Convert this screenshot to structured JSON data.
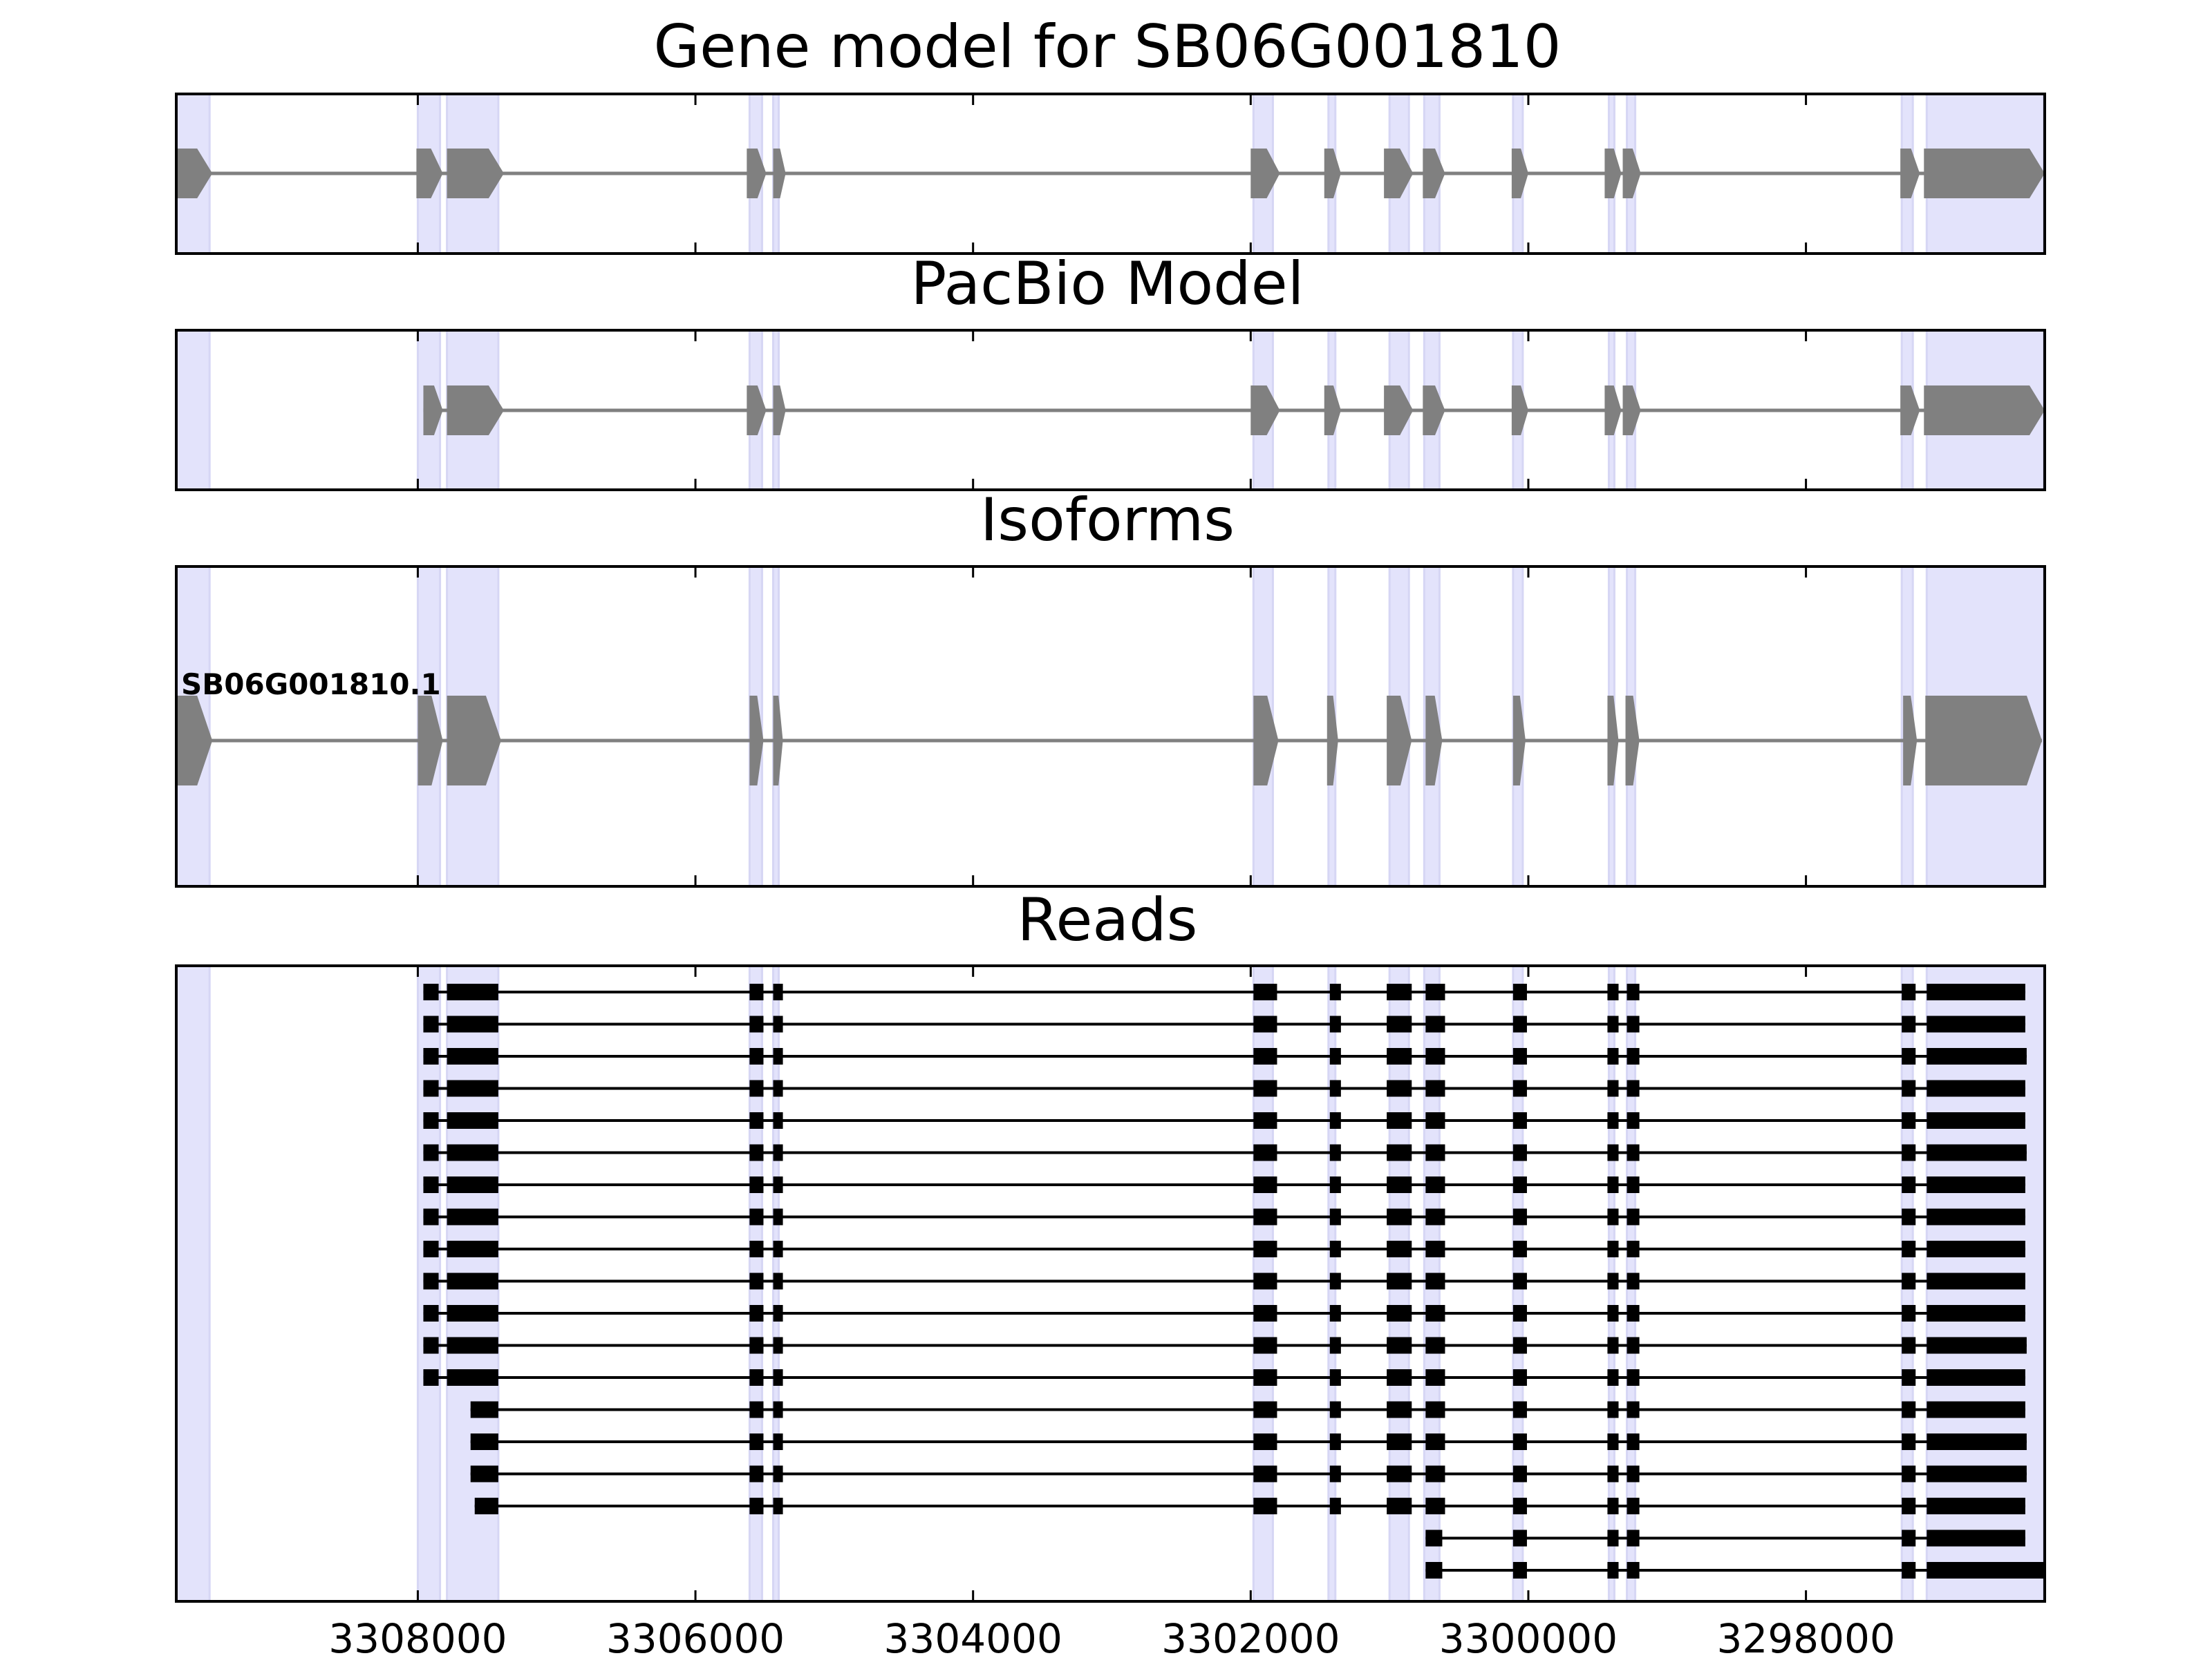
{
  "chart_data": {
    "type": "gene_model",
    "x_axis": {
      "direction": "reversed",
      "xlim": [
        3309740,
        3296280
      ],
      "ticks": [
        3308000,
        3306000,
        3304000,
        3302000,
        3300000,
        3298000
      ],
      "tick_labels": [
        "3308000",
        "3306000",
        "3304000",
        "3302000",
        "3300000",
        "3298000"
      ]
    },
    "highlight_color": "#e3e3fb",
    "gene_color": "#808080",
    "read_color": "#000000",
    "highlight_regions": [
      [
        3309740,
        3309500
      ],
      [
        3308000,
        3307840
      ],
      [
        3307790,
        3307420
      ],
      [
        3305610,
        3305520
      ],
      [
        3305440,
        3305400
      ],
      [
        3301980,
        3301840
      ],
      [
        3301440,
        3301390
      ],
      [
        3301000,
        3300860
      ],
      [
        3300750,
        3300640
      ],
      [
        3300110,
        3300040
      ],
      [
        3299420,
        3299380
      ],
      [
        3299290,
        3299230
      ],
      [
        3297310,
        3297230
      ],
      [
        3297130,
        3296290
      ]
    ],
    "panels": [
      {
        "title": "Gene model for SB06G001810",
        "exons": [
          [
            3309740,
            3309480
          ],
          [
            3308010,
            3307820
          ],
          [
            3307790,
            3307380
          ],
          [
            3305630,
            3305490
          ],
          [
            3305440,
            3305350
          ],
          [
            3302000,
            3301790
          ],
          [
            3301470,
            3301350
          ],
          [
            3301040,
            3300830
          ],
          [
            3300760,
            3300600
          ],
          [
            3300120,
            3300000
          ],
          [
            3299450,
            3299330
          ],
          [
            3299320,
            3299190
          ],
          [
            3297320,
            3297180
          ],
          [
            3297150,
            3296280
          ]
        ]
      },
      {
        "title": "PacBio Model",
        "exons": [
          [
            3307960,
            3307820
          ],
          [
            3307790,
            3307380
          ],
          [
            3305630,
            3305490
          ],
          [
            3305440,
            3305350
          ],
          [
            3302000,
            3301790
          ],
          [
            3301470,
            3301350
          ],
          [
            3301040,
            3300830
          ],
          [
            3300760,
            3300600
          ],
          [
            3300120,
            3300000
          ],
          [
            3299450,
            3299330
          ],
          [
            3299320,
            3299190
          ],
          [
            3297320,
            3297180
          ],
          [
            3297150,
            3296280
          ]
        ]
      },
      {
        "title": "Isoforms",
        "isoform_label": "SB06G001810.1",
        "exons": [
          [
            3309740,
            3309480
          ],
          [
            3308000,
            3307820
          ],
          [
            3307790,
            3307400
          ],
          [
            3305610,
            3305510
          ],
          [
            3305440,
            3305370
          ],
          [
            3301980,
            3301800
          ],
          [
            3301450,
            3301370
          ],
          [
            3301020,
            3300840
          ],
          [
            3300740,
            3300620
          ],
          [
            3300110,
            3300020
          ],
          [
            3299430,
            3299350
          ],
          [
            3299300,
            3299200
          ],
          [
            3297300,
            3297200
          ],
          [
            3297140,
            3296300
          ]
        ]
      }
    ],
    "reads_panel": {
      "title": "Reads",
      "reads": [
        [
          [
            3307960,
            3307850
          ],
          [
            3307790,
            3307420
          ],
          [
            3305610,
            3305510
          ],
          [
            3305440,
            3305370
          ],
          [
            3301980,
            3301810
          ],
          [
            3301430,
            3301350
          ],
          [
            3301020,
            3300840
          ],
          [
            3300740,
            3300600
          ],
          [
            3300110,
            3300010
          ],
          [
            3299430,
            3299350
          ],
          [
            3299290,
            3299200
          ],
          [
            3297310,
            3297210
          ],
          [
            3297130,
            3296420
          ]
        ],
        [
          [
            3307960,
            3307850
          ],
          [
            3307790,
            3307420
          ],
          [
            3305610,
            3305510
          ],
          [
            3305440,
            3305370
          ],
          [
            3301980,
            3301810
          ],
          [
            3301430,
            3301350
          ],
          [
            3301020,
            3300840
          ],
          [
            3300740,
            3300600
          ],
          [
            3300110,
            3300010
          ],
          [
            3299430,
            3299350
          ],
          [
            3299290,
            3299200
          ],
          [
            3297310,
            3297210
          ],
          [
            3297130,
            3296420
          ]
        ],
        [
          [
            3307960,
            3307850
          ],
          [
            3307790,
            3307420
          ],
          [
            3305610,
            3305510
          ],
          [
            3305440,
            3305370
          ],
          [
            3301980,
            3301810
          ],
          [
            3301430,
            3301350
          ],
          [
            3301020,
            3300840
          ],
          [
            3300740,
            3300600
          ],
          [
            3300110,
            3300010
          ],
          [
            3299430,
            3299350
          ],
          [
            3299290,
            3299200
          ],
          [
            3297310,
            3297210
          ],
          [
            3297130,
            3296410
          ]
        ],
        [
          [
            3307960,
            3307850
          ],
          [
            3307790,
            3307420
          ],
          [
            3305610,
            3305510
          ],
          [
            3305440,
            3305370
          ],
          [
            3301980,
            3301810
          ],
          [
            3301430,
            3301350
          ],
          [
            3301020,
            3300840
          ],
          [
            3300740,
            3300600
          ],
          [
            3300110,
            3300010
          ],
          [
            3299430,
            3299350
          ],
          [
            3299290,
            3299200
          ],
          [
            3297310,
            3297210
          ],
          [
            3297130,
            3296420
          ]
        ],
        [
          [
            3307960,
            3307850
          ],
          [
            3307790,
            3307420
          ],
          [
            3305610,
            3305510
          ],
          [
            3305440,
            3305370
          ],
          [
            3301980,
            3301810
          ],
          [
            3301430,
            3301350
          ],
          [
            3301020,
            3300840
          ],
          [
            3300740,
            3300600
          ],
          [
            3300110,
            3300010
          ],
          [
            3299430,
            3299350
          ],
          [
            3299290,
            3299200
          ],
          [
            3297310,
            3297210
          ],
          [
            3297130,
            3296420
          ]
        ],
        [
          [
            3307960,
            3307850
          ],
          [
            3307790,
            3307420
          ],
          [
            3305610,
            3305510
          ],
          [
            3305440,
            3305370
          ],
          [
            3301980,
            3301810
          ],
          [
            3301430,
            3301350
          ],
          [
            3301020,
            3300840
          ],
          [
            3300740,
            3300600
          ],
          [
            3300110,
            3300010
          ],
          [
            3299430,
            3299350
          ],
          [
            3299290,
            3299200
          ],
          [
            3297310,
            3297210
          ],
          [
            3297130,
            3296410
          ]
        ],
        [
          [
            3307960,
            3307850
          ],
          [
            3307790,
            3307420
          ],
          [
            3305610,
            3305510
          ],
          [
            3305440,
            3305370
          ],
          [
            3301980,
            3301810
          ],
          [
            3301430,
            3301350
          ],
          [
            3301020,
            3300840
          ],
          [
            3300740,
            3300600
          ],
          [
            3300110,
            3300010
          ],
          [
            3299430,
            3299350
          ],
          [
            3299290,
            3299200
          ],
          [
            3297310,
            3297210
          ],
          [
            3297130,
            3296420
          ]
        ],
        [
          [
            3307960,
            3307850
          ],
          [
            3307790,
            3307420
          ],
          [
            3305610,
            3305510
          ],
          [
            3305440,
            3305370
          ],
          [
            3301980,
            3301810
          ],
          [
            3301430,
            3301350
          ],
          [
            3301020,
            3300840
          ],
          [
            3300740,
            3300600
          ],
          [
            3300110,
            3300010
          ],
          [
            3299430,
            3299350
          ],
          [
            3299290,
            3299200
          ],
          [
            3297310,
            3297210
          ],
          [
            3297130,
            3296420
          ]
        ],
        [
          [
            3307960,
            3307850
          ],
          [
            3307790,
            3307420
          ],
          [
            3305610,
            3305510
          ],
          [
            3305440,
            3305370
          ],
          [
            3301980,
            3301810
          ],
          [
            3301430,
            3301350
          ],
          [
            3301020,
            3300840
          ],
          [
            3300740,
            3300600
          ],
          [
            3300110,
            3300010
          ],
          [
            3299430,
            3299350
          ],
          [
            3299290,
            3299200
          ],
          [
            3297310,
            3297210
          ],
          [
            3297130,
            3296420
          ]
        ],
        [
          [
            3307960,
            3307850
          ],
          [
            3307790,
            3307420
          ],
          [
            3305610,
            3305510
          ],
          [
            3305440,
            3305370
          ],
          [
            3301980,
            3301810
          ],
          [
            3301430,
            3301350
          ],
          [
            3301020,
            3300840
          ],
          [
            3300740,
            3300600
          ],
          [
            3300110,
            3300010
          ],
          [
            3299430,
            3299350
          ],
          [
            3299290,
            3299200
          ],
          [
            3297310,
            3297210
          ],
          [
            3297130,
            3296420
          ]
        ],
        [
          [
            3307960,
            3307850
          ],
          [
            3307790,
            3307420
          ],
          [
            3305610,
            3305510
          ],
          [
            3305440,
            3305370
          ],
          [
            3301980,
            3301810
          ],
          [
            3301430,
            3301350
          ],
          [
            3301020,
            3300840
          ],
          [
            3300740,
            3300600
          ],
          [
            3300110,
            3300010
          ],
          [
            3299430,
            3299350
          ],
          [
            3299290,
            3299200
          ],
          [
            3297310,
            3297210
          ],
          [
            3297130,
            3296420
          ]
        ],
        [
          [
            3307960,
            3307850
          ],
          [
            3307790,
            3307420
          ],
          [
            3305610,
            3305510
          ],
          [
            3305440,
            3305370
          ],
          [
            3301980,
            3301810
          ],
          [
            3301430,
            3301350
          ],
          [
            3301020,
            3300840
          ],
          [
            3300740,
            3300600
          ],
          [
            3300110,
            3300010
          ],
          [
            3299430,
            3299350
          ],
          [
            3299290,
            3299200
          ],
          [
            3297310,
            3297210
          ],
          [
            3297130,
            3296410
          ]
        ],
        [
          [
            3307960,
            3307850
          ],
          [
            3307790,
            3307420
          ],
          [
            3305610,
            3305510
          ],
          [
            3305440,
            3305370
          ],
          [
            3301980,
            3301810
          ],
          [
            3301430,
            3301350
          ],
          [
            3301020,
            3300840
          ],
          [
            3300740,
            3300600
          ],
          [
            3300110,
            3300010
          ],
          [
            3299430,
            3299350
          ],
          [
            3299290,
            3299200
          ],
          [
            3297310,
            3297210
          ],
          [
            3297130,
            3296420
          ]
        ],
        [
          [
            3307620,
            3307420
          ],
          [
            3305610,
            3305510
          ],
          [
            3305440,
            3305370
          ],
          [
            3301980,
            3301810
          ],
          [
            3301430,
            3301350
          ],
          [
            3301020,
            3300840
          ],
          [
            3300740,
            3300600
          ],
          [
            3300110,
            3300010
          ],
          [
            3299430,
            3299350
          ],
          [
            3299290,
            3299200
          ],
          [
            3297310,
            3297210
          ],
          [
            3297130,
            3296420
          ]
        ],
        [
          [
            3307620,
            3307420
          ],
          [
            3305610,
            3305510
          ],
          [
            3305440,
            3305370
          ],
          [
            3301980,
            3301810
          ],
          [
            3301430,
            3301350
          ],
          [
            3301020,
            3300840
          ],
          [
            3300740,
            3300600
          ],
          [
            3300110,
            3300010
          ],
          [
            3299430,
            3299350
          ],
          [
            3299290,
            3299200
          ],
          [
            3297310,
            3297210
          ],
          [
            3297130,
            3296410
          ]
        ],
        [
          [
            3307620,
            3307420
          ],
          [
            3305610,
            3305510
          ],
          [
            3305440,
            3305370
          ],
          [
            3301980,
            3301810
          ],
          [
            3301430,
            3301350
          ],
          [
            3301020,
            3300840
          ],
          [
            3300740,
            3300600
          ],
          [
            3300110,
            3300010
          ],
          [
            3299430,
            3299350
          ],
          [
            3299290,
            3299200
          ],
          [
            3297310,
            3297210
          ],
          [
            3297130,
            3296410
          ]
        ],
        [
          [
            3307590,
            3307420
          ],
          [
            3305610,
            3305510
          ],
          [
            3305440,
            3305370
          ],
          [
            3301980,
            3301810
          ],
          [
            3301430,
            3301350
          ],
          [
            3301020,
            3300840
          ],
          [
            3300740,
            3300600
          ],
          [
            3300110,
            3300010
          ],
          [
            3299430,
            3299350
          ],
          [
            3299290,
            3299200
          ],
          [
            3297310,
            3297210
          ],
          [
            3297130,
            3296420
          ]
        ],
        [
          [
            3300740,
            3300620
          ],
          [
            3300110,
            3300010
          ],
          [
            3299430,
            3299350
          ],
          [
            3299290,
            3299200
          ],
          [
            3297310,
            3297210
          ],
          [
            3297130,
            3296420
          ]
        ],
        [
          [
            3300740,
            3300620
          ],
          [
            3300110,
            3300010
          ],
          [
            3299430,
            3299350
          ],
          [
            3299290,
            3299200
          ],
          [
            3297310,
            3297210
          ],
          [
            3297130,
            3296290
          ]
        ]
      ]
    }
  }
}
